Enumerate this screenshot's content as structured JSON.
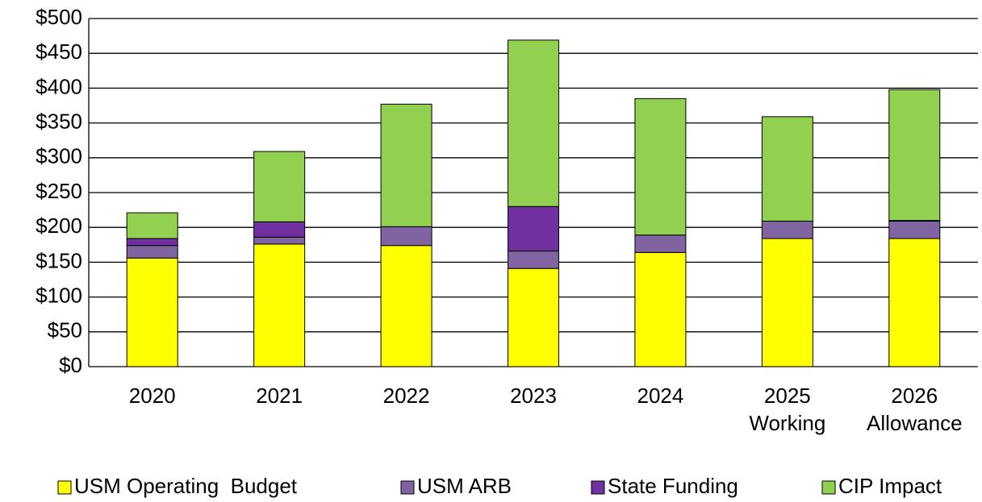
{
  "chart_data": {
    "type": "stacked_bar",
    "categories": [
      [
        "2020"
      ],
      [
        "2021"
      ],
      [
        "2022"
      ],
      [
        "2023"
      ],
      [
        "2024"
      ],
      [
        "2025",
        "Working"
      ],
      [
        "2026",
        "Allowance"
      ]
    ],
    "series": [
      {
        "name": "USM Operating  Budget",
        "color": "#ffff00",
        "values": [
          156,
          176,
          174,
          141,
          164,
          184,
          184
        ]
      },
      {
        "name": "USM ARB",
        "color": "#8064a2",
        "values": [
          18,
          10,
          27,
          25,
          25,
          25,
          25
        ]
      },
      {
        "name": "State Funding",
        "color": "#7030a0",
        "values": [
          10,
          22,
          0,
          64,
          0,
          0,
          1
        ]
      },
      {
        "name": "CIP Impact",
        "color": "#92d050",
        "values": [
          37,
          101,
          176,
          239,
          196,
          150,
          188
        ]
      }
    ],
    "ylim": [
      0,
      500
    ],
    "yticks": [
      {
        "value": 0,
        "label": "$0"
      },
      {
        "value": 50,
        "label": "$50"
      },
      {
        "value": 100,
        "label": "$100"
      },
      {
        "value": 150,
        "label": "$150"
      },
      {
        "value": 200,
        "label": "$200"
      },
      {
        "value": 250,
        "label": "$250"
      },
      {
        "value": 300,
        "label": "$300"
      },
      {
        "value": 350,
        "label": "$350"
      },
      {
        "value": 400,
        "label": "$400"
      },
      {
        "value": 450,
        "label": "$450"
      },
      {
        "value": 500,
        "label": "$500"
      }
    ],
    "grid": true,
    "legend": "bottom"
  }
}
